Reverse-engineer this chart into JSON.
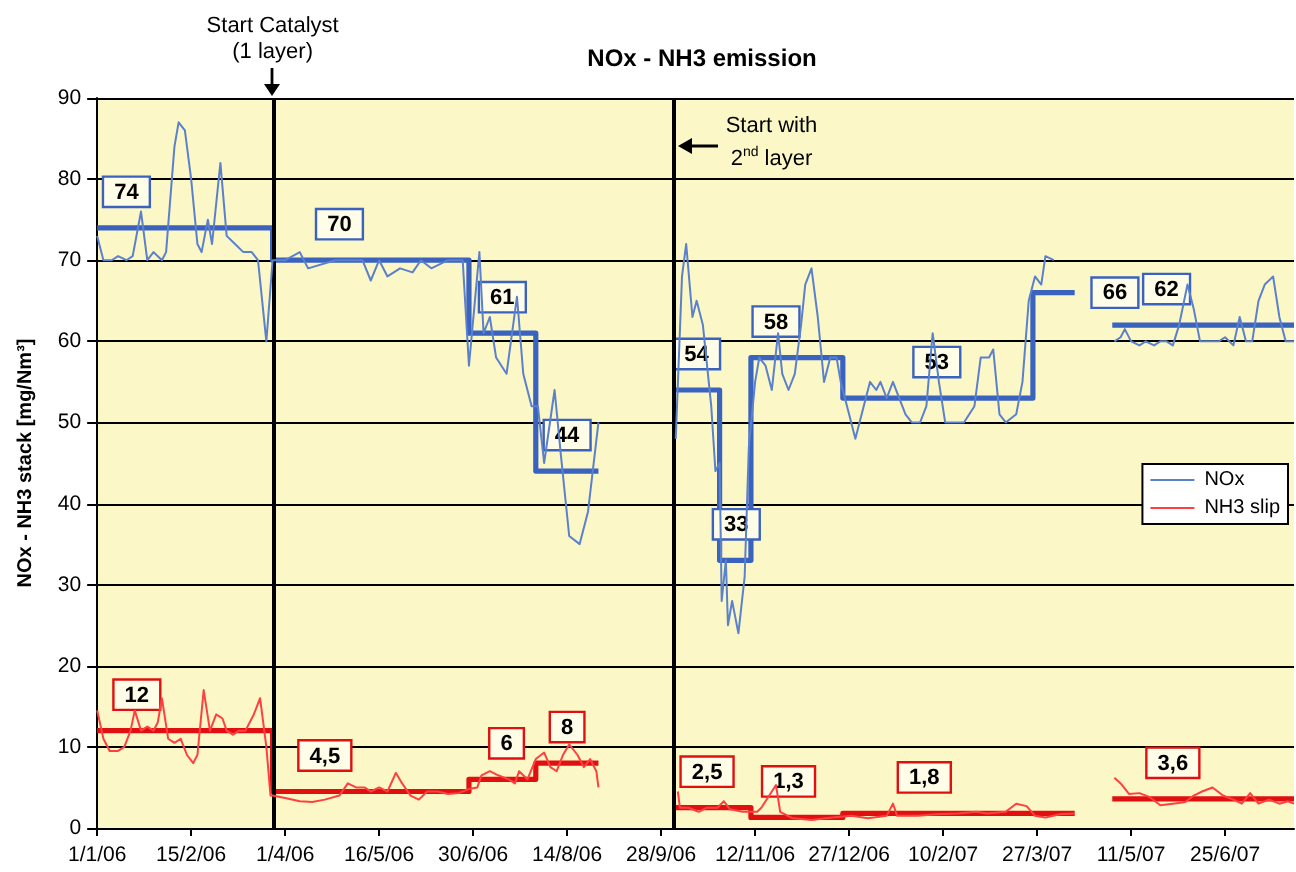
{
  "chart_data": {
    "type": "line",
    "title": "NOx - NH3 emission",
    "ylabel": "NOx - NH3 stack [mg/Nm³]",
    "xlim": [
      "2006-01-01",
      "2007-07-28"
    ],
    "xticks": [
      {
        "value": "2006-01-01",
        "label": "1/1/06"
      },
      {
        "value": "2006-02-15",
        "label": "15/2/06"
      },
      {
        "value": "2006-04-01",
        "label": "1/4/06"
      },
      {
        "value": "2006-05-16",
        "label": "16/5/06"
      },
      {
        "value": "2006-06-30",
        "label": "30/6/06"
      },
      {
        "value": "2006-08-14",
        "label": "14/8/06"
      },
      {
        "value": "2006-09-28",
        "label": "28/9/06"
      },
      {
        "value": "2006-11-12",
        "label": "12/11/06"
      },
      {
        "value": "2006-12-27",
        "label": "27/12/06"
      },
      {
        "value": "2007-02-10",
        "label": "10/2/07"
      },
      {
        "value": "2007-03-27",
        "label": "27/3/07"
      },
      {
        "value": "2007-05-11",
        "label": "11/5/07"
      },
      {
        "value": "2007-06-25",
        "label": "25/6/07"
      }
    ],
    "ylim": [
      0,
      90
    ],
    "yticks": [
      0,
      10,
      20,
      30,
      40,
      50,
      60,
      70,
      80,
      90
    ],
    "grid": "y",
    "legend": "right",
    "marker": "none",
    "ref_lines": [
      {
        "axis": "x",
        "value": "2006-03-26",
        "label": "Start Catalyst\n(1 layer)",
        "color": "#000000"
      },
      {
        "axis": "x",
        "value": "2006-10-04",
        "label": "Start with\n2$^{nd}$ layer",
        "color": "#000000"
      }
    ],
    "series": [
      {
        "name": "NOx",
        "color": "#5b80cc",
        "x": [
          "2006-01-01",
          "2006-01-04",
          "2006-01-08",
          "2006-01-11",
          "2006-01-15",
          "2006-01-18",
          "2006-01-22",
          "2006-01-25",
          "2006-01-28",
          "2006-02-01",
          "2006-02-03",
          "2006-02-07",
          "2006-02-09",
          "2006-02-12",
          "2006-02-15",
          "2006-02-18",
          "2006-02-20",
          "2006-02-23",
          "2006-02-25",
          "2006-03-01",
          "2006-03-04",
          "2006-03-08",
          "2006-03-12",
          "2006-03-16",
          "2006-03-19",
          "2006-03-23",
          "2006-03-26",
          "2006-04-01",
          "2006-04-08",
          "2006-04-12",
          "2006-04-25",
          "2006-05-08",
          "2006-05-12",
          "2006-05-16",
          "2006-05-20",
          "2006-05-26",
          "2006-06-01",
          "2006-06-05",
          "2006-06-10",
          "2006-06-18",
          "2006-06-25",
          "2006-06-28",
          "2006-07-03",
          "2006-07-05",
          "2006-07-08",
          "2006-07-11",
          "2006-07-16",
          "2006-07-21",
          "2006-07-24",
          "2006-07-28",
          "2006-07-31",
          "2006-08-03",
          "2006-08-08",
          "2006-08-11",
          "2006-08-15",
          "2006-08-20",
          "2006-08-24",
          "2006-08-29",
          "2006-09-15",
          "2006-10-05",
          "2006-10-08",
          "2006-10-10",
          "2006-10-13",
          "2006-10-15",
          "2006-10-18",
          "2006-10-22",
          "2006-10-24",
          "2006-10-26",
          "2006-10-27",
          "2006-10-29",
          "2006-10-30",
          "2006-11-01",
          "2006-11-04",
          "2006-11-07",
          "2006-11-09",
          "2006-11-12",
          "2006-11-14",
          "2006-11-17",
          "2006-11-20",
          "2006-11-23",
          "2006-11-25",
          "2006-11-28",
          "2006-12-01",
          "2006-12-04",
          "2006-12-06",
          "2006-12-09",
          "2006-12-12",
          "2006-12-15",
          "2006-12-18",
          "2006-12-21",
          "2006-12-23",
          "2006-12-27",
          "2006-12-30",
          "2007-01-03",
          "2007-01-06",
          "2007-01-09",
          "2007-01-11",
          "2007-01-14",
          "2007-01-17",
          "2007-01-20",
          "2007-01-23",
          "2007-01-26",
          "2007-01-30",
          "2007-02-02",
          "2007-02-05",
          "2007-02-08",
          "2007-02-11",
          "2007-02-16",
          "2007-02-20",
          "2007-02-25",
          "2007-02-28",
          "2007-03-04",
          "2007-03-06",
          "2007-03-09",
          "2007-03-12",
          "2007-03-17",
          "2007-03-20",
          "2007-03-23",
          "2007-03-26",
          "2007-03-29",
          "2007-03-31",
          "2007-04-04",
          "2007-04-20",
          "2007-05-03",
          "2007-05-06",
          "2007-05-08",
          "2007-05-11",
          "2007-05-15",
          "2007-05-18",
          "2007-05-22",
          "2007-05-25",
          "2007-05-28",
          "2007-05-31",
          "2007-06-03",
          "2007-06-07",
          "2007-06-10",
          "2007-06-13",
          "2007-06-16",
          "2007-06-19",
          "2007-06-22",
          "2007-06-25",
          "2007-06-29",
          "2007-07-02",
          "2007-07-03",
          "2007-07-05",
          "2007-07-08",
          "2007-07-11",
          "2007-07-14",
          "2007-07-18",
          "2007-07-21",
          "2007-07-24",
          "2007-07-28"
        ],
        "values": [
          73,
          70,
          70,
          70.5,
          70,
          70.5,
          76,
          70,
          71,
          70,
          71,
          84,
          87,
          86,
          80,
          72,
          71,
          75,
          72,
          82,
          73,
          72,
          71,
          71,
          70,
          60,
          70,
          70,
          71,
          69,
          70,
          70,
          67.5,
          70,
          68,
          69,
          68.5,
          70,
          69,
          70,
          70,
          57,
          71,
          61,
          63,
          58,
          56,
          65.5,
          56,
          52,
          52,
          45,
          54,
          46,
          36,
          35,
          39,
          50,
          null,
          48,
          68,
          72,
          63,
          65,
          62,
          52,
          44,
          45,
          28,
          33,
          25,
          28,
          24,
          31,
          47,
          55,
          58,
          57,
          54,
          61,
          56,
          54,
          56,
          62,
          67,
          69,
          63,
          55,
          58,
          58,
          55,
          51,
          48,
          52,
          55,
          54,
          55,
          53,
          55,
          53,
          51,
          50,
          50,
          52,
          61,
          55,
          50,
          50,
          50,
          52,
          58,
          58,
          59,
          51,
          50,
          51,
          55,
          65,
          68,
          67,
          70.5,
          70,
          null,
          60,
          60.5,
          61.5,
          60,
          59.5,
          60,
          59.5,
          60,
          60,
          59.5,
          62,
          67,
          64,
          60,
          60,
          60,
          60,
          60.5,
          59.5,
          63,
          62,
          60,
          60,
          65,
          67,
          68,
          63,
          60,
          60
        ]
      },
      {
        "name": "NH3 slip",
        "color": "#ff4040",
        "x": [
          "2006-01-01",
          "2006-01-04",
          "2006-01-07",
          "2006-01-11",
          "2006-01-14",
          "2006-01-17",
          "2006-01-19",
          "2006-01-22",
          "2006-01-25",
          "2006-01-28",
          "2006-01-30",
          "2006-02-01",
          "2006-02-04",
          "2006-02-07",
          "2006-02-10",
          "2006-02-13",
          "2006-02-16",
          "2006-02-18",
          "2006-02-21",
          "2006-02-24",
          "2006-02-27",
          "2006-03-02",
          "2006-03-04",
          "2006-03-07",
          "2006-03-10",
          "2006-03-13",
          "2006-03-17",
          "2006-03-20",
          "2006-03-23",
          "2006-03-25",
          "2006-03-26",
          "2006-04-01",
          "2006-04-08",
          "2006-04-14",
          "2006-04-20",
          "2006-04-27",
          "2006-05-01",
          "2006-05-05",
          "2006-05-09",
          "2006-05-12",
          "2006-05-16",
          "2006-05-20",
          "2006-05-24",
          "2006-05-27",
          "2006-05-31",
          "2006-06-04",
          "2006-06-08",
          "2006-06-13",
          "2006-06-18",
          "2006-06-23",
          "2006-06-28",
          "2006-07-02",
          "2006-07-04",
          "2006-07-08",
          "2006-07-12",
          "2006-07-17",
          "2006-07-20",
          "2006-07-22",
          "2006-07-26",
          "2006-07-30",
          "2006-08-03",
          "2006-08-06",
          "2006-08-09",
          "2006-08-12",
          "2006-08-15",
          "2006-08-19",
          "2006-08-22",
          "2006-08-25",
          "2006-08-28",
          "2006-08-29",
          "2006-09-15",
          "2006-10-06",
          "2006-10-07",
          "2006-10-11",
          "2006-10-16",
          "2006-10-20",
          "2006-10-25",
          "2006-10-28",
          "2006-10-31",
          "2006-11-06",
          "2006-11-13",
          "2006-11-15",
          "2006-11-20",
          "2006-11-22",
          "2006-11-24",
          "2006-11-30",
          "2006-12-09",
          "2006-12-19",
          "2006-12-28",
          "2007-01-05",
          "2007-01-14",
          "2007-01-17",
          "2007-01-19",
          "2007-01-29",
          "2007-02-07",
          "2007-02-17",
          "2007-02-26",
          "2007-03-03",
          "2007-03-12",
          "2007-03-17",
          "2007-03-22",
          "2007-03-26",
          "2007-03-31",
          "2007-04-07",
          "2007-04-14",
          "2007-04-24",
          "2007-05-03",
          "2007-05-06",
          "2007-05-10",
          "2007-05-15",
          "2007-05-20",
          "2007-05-25",
          "2007-05-31",
          "2007-06-06",
          "2007-06-10",
          "2007-06-14",
          "2007-06-19",
          "2007-06-24",
          "2007-06-29",
          "2007-07-03",
          "2007-07-07",
          "2007-07-11",
          "2007-07-16",
          "2007-07-21",
          "2007-07-25",
          "2007-07-28"
        ],
        "values": [
          14.5,
          11,
          9.5,
          9.5,
          10,
          12,
          14.5,
          12,
          12.5,
          12,
          13,
          16,
          11,
          10.5,
          11,
          9,
          8,
          9,
          17,
          12,
          14,
          13.5,
          12,
          11.5,
          12,
          12,
          14,
          16,
          10,
          4,
          4,
          3.7,
          3.3,
          3.2,
          3.5,
          4,
          5.5,
          5,
          5,
          4.5,
          5,
          4.5,
          6.8,
          5.5,
          4,
          3.5,
          4.5,
          4.5,
          4.2,
          4.3,
          4.8,
          5,
          6.5,
          7,
          6.5,
          6,
          5.5,
          7,
          6,
          8.5,
          9.3,
          7.5,
          7,
          9,
          10.3,
          9,
          7.5,
          8.5,
          7,
          5,
          null,
          4.5,
          2.5,
          2.5,
          2,
          2.5,
          2.5,
          3.3,
          2.3,
          2,
          2,
          2.5,
          4.5,
          5.3,
          2,
          1.2,
          1,
          1.3,
          1.5,
          1.2,
          1.5,
          3,
          1.5,
          1.5,
          1.7,
          1.8,
          2,
          1.8,
          2,
          3,
          2.7,
          1.5,
          1.3,
          1.7,
          1.8,
          null,
          6.2,
          5.5,
          4.2,
          4.3,
          3.8,
          2.8,
          3,
          3.2,
          4,
          4.5,
          5,
          4,
          3.5,
          3,
          4.3,
          3,
          3.5,
          3,
          3.3,
          3
        ]
      },
      {
        "color": "#3a62bf",
        "x": [
          "2006-01-01",
          "2006-01-15",
          "2006-03-26",
          "2006-03-26",
          "2006-04-27",
          "2006-06-28",
          "2006-06-28",
          "2006-07-14",
          "2006-07-30",
          "2006-07-30",
          "2006-08-14",
          "2006-08-29",
          "2006-09-15",
          "2006-10-04",
          "2006-10-15",
          "2006-10-26",
          "2006-10-26",
          "2006-11-03",
          "2006-11-10",
          "2006-11-10",
          "2006-11-22",
          "2006-12-24",
          "2006-12-24",
          "2007-02-07",
          "2007-03-25",
          "2007-03-25",
          "2007-04-04",
          "2007-04-14",
          "2007-04-24",
          "2007-05-02",
          "2007-05-28",
          "2007-07-28"
        ],
        "values": [
          74,
          74,
          74,
          70,
          70,
          70,
          61,
          61,
          61,
          44,
          44,
          44,
          null,
          54,
          54,
          54,
          33,
          33,
          33,
          58,
          58,
          58,
          53,
          53,
          53,
          66,
          66,
          66,
          null,
          62,
          62,
          62
        ],
        "value_labels": [
          null,
          "74",
          null,
          null,
          "70",
          null,
          null,
          "61",
          null,
          null,
          "44",
          null,
          null,
          null,
          "54",
          null,
          null,
          "33",
          null,
          null,
          "58",
          null,
          null,
          "53",
          null,
          null,
          null,
          "66",
          null,
          null,
          "62",
          null
        ]
      },
      {
        "color": "#e01010",
        "x": [
          "2006-01-01",
          "2006-01-20",
          "2006-03-26",
          "2006-03-26",
          "2006-04-20",
          "2006-06-28",
          "2006-06-28",
          "2006-07-16",
          "2006-07-30",
          "2006-07-30",
          "2006-08-14",
          "2006-08-29",
          "2006-09-15",
          "2006-10-04",
          "2006-10-20",
          "2006-11-10",
          "2006-11-10",
          "2006-11-28",
          "2006-12-24",
          "2006-12-24",
          "2007-02-01",
          "2007-04-14",
          "2007-04-24",
          "2007-05-02",
          "2007-05-31",
          "2007-07-28"
        ],
        "values": [
          12,
          12,
          12,
          4.5,
          4.5,
          4.5,
          6,
          6,
          6,
          8,
          8,
          8,
          null,
          2.5,
          2.5,
          2.5,
          1.3,
          1.3,
          1.3,
          1.8,
          1.8,
          1.8,
          null,
          3.6,
          3.6,
          3.6
        ],
        "value_labels": [
          null,
          "12",
          null,
          null,
          "4,5",
          null,
          null,
          "6",
          null,
          null,
          "8",
          null,
          null,
          null,
          "2,5",
          null,
          null,
          "1,3",
          null,
          null,
          "1,8",
          null,
          null,
          null,
          "3,6",
          null
        ]
      }
    ]
  }
}
